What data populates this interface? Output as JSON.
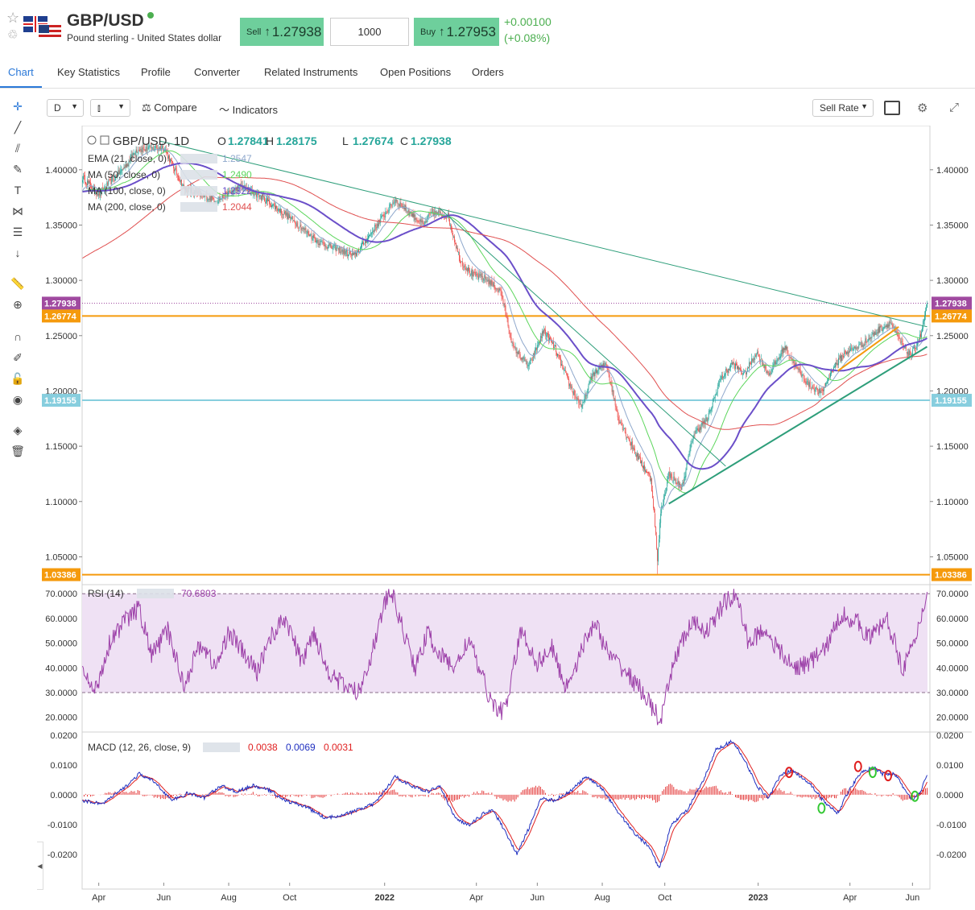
{
  "header": {
    "symbol": "GBP/USD",
    "description": "Pound sterling - United States dollar",
    "sell_label": "Sell",
    "sell_price": "1.27938",
    "quantity": "1000",
    "buy_label": "Buy",
    "buy_price": "1.27953",
    "change": "+0.00100",
    "change_pct": "(+0.08%)",
    "arrow": "↑"
  },
  "tabs": [
    "Chart",
    "Key Statistics",
    "Profile",
    "Converter",
    "Related Instruments",
    "Open Positions",
    "Orders"
  ],
  "toolbar": {
    "interval": "D",
    "compare": "Compare",
    "indicators": "Indicators",
    "rate_select": "Sell Rate"
  },
  "chart_data": {
    "type": "candlestick",
    "symbol_interval": "GBP/USD, 1D",
    "ohlc": {
      "O": "1.27841",
      "H": "1.28175",
      "L": "1.27674",
      "C": "1.27938"
    },
    "indicators": [
      {
        "label": "EMA (21, close, 0)",
        "value": "1.2547",
        "color": "#8fa8cc"
      },
      {
        "label": "MA (50, close, 0)",
        "value": "1.2490",
        "color": "#5cd65c"
      },
      {
        "label": "MA (100, close, 0)",
        "value": "1.2322",
        "color": "#6b4fc9"
      },
      {
        "label": "MA (200, close, 0)",
        "value": "1.2044",
        "color": "#e05050"
      }
    ],
    "price_axis": [
      "1.40000",
      "1.35000",
      "1.30000",
      "1.25000",
      "1.20000",
      "1.15000",
      "1.10000",
      "1.05000"
    ],
    "ylim": [
      1.027,
      1.437
    ],
    "horizontal_lines": [
      {
        "value": 1.27938,
        "label": "1.27938",
        "color": "#a04aa0",
        "style": "dotted"
      },
      {
        "value": 1.26774,
        "label": "1.26774",
        "color": "#f59a0c"
      },
      {
        "value": 1.19155,
        "label": "1.19155",
        "color": "#87cede"
      },
      {
        "value": 1.03386,
        "label": "1.03386",
        "color": "#f59a0c"
      }
    ],
    "time_axis": [
      "Apr",
      "Jun",
      "Aug",
      "Oct",
      "2022",
      "Apr",
      "Jun",
      "Aug",
      "Oct",
      "2023",
      "Apr",
      "Jun"
    ],
    "close_anchors": [
      [
        0,
        1.393
      ],
      [
        20,
        1.378
      ],
      [
        55,
        1.405
      ],
      [
        65,
        1.418
      ],
      [
        100,
        1.42
      ],
      [
        125,
        1.383
      ],
      [
        165,
        1.372
      ],
      [
        195,
        1.385
      ],
      [
        215,
        1.378
      ],
      [
        255,
        1.357
      ],
      [
        290,
        1.335
      ],
      [
        335,
        1.322
      ],
      [
        385,
        1.373
      ],
      [
        420,
        1.35
      ],
      [
        430,
        1.362
      ],
      [
        450,
        1.358
      ],
      [
        465,
        1.318
      ],
      [
        480,
        1.305
      ],
      [
        495,
        1.302
      ],
      [
        515,
        1.29
      ],
      [
        530,
        1.24
      ],
      [
        550,
        1.222
      ],
      [
        568,
        1.255
      ],
      [
        582,
        1.238
      ],
      [
        600,
        1.205
      ],
      [
        615,
        1.185
      ],
      [
        628,
        1.215
      ],
      [
        645,
        1.225
      ],
      [
        660,
        1.175
      ],
      [
        680,
        1.145
      ],
      [
        700,
        1.12
      ],
      [
        705,
        1.08
      ],
      [
        708,
        1.045
      ],
      [
        712,
        1.09
      ],
      [
        722,
        1.125
      ],
      [
        738,
        1.112
      ],
      [
        752,
        1.16
      ],
      [
        770,
        1.175
      ],
      [
        785,
        1.21
      ],
      [
        800,
        1.225
      ],
      [
        815,
        1.215
      ],
      [
        830,
        1.235
      ],
      [
        845,
        1.215
      ],
      [
        865,
        1.24
      ],
      [
        880,
        1.22
      ],
      [
        895,
        1.205
      ],
      [
        910,
        1.198
      ],
      [
        925,
        1.222
      ],
      [
        940,
        1.235
      ],
      [
        960,
        1.242
      ],
      [
        980,
        1.255
      ],
      [
        995,
        1.262
      ],
      [
        1010,
        1.24
      ],
      [
        1020,
        1.232
      ],
      [
        1032,
        1.25
      ],
      [
        1040,
        1.279
      ]
    ],
    "rsi": {
      "label": "RSI (14)",
      "value": "70.6803",
      "axis": [
        "70.0000",
        "60.0000",
        "50.0000",
        "40.0000",
        "30.0000",
        "20.0000"
      ],
      "ylim": [
        15,
        73
      ],
      "band": [
        30,
        70
      ],
      "anchors": [
        [
          0,
          38
        ],
        [
          15,
          30
        ],
        [
          35,
          52
        ],
        [
          55,
          60
        ],
        [
          70,
          64
        ],
        [
          85,
          45
        ],
        [
          105,
          55
        ],
        [
          125,
          33
        ],
        [
          145,
          50
        ],
        [
          165,
          40
        ],
        [
          180,
          55
        ],
        [
          200,
          45
        ],
        [
          215,
          38
        ],
        [
          230,
          52
        ],
        [
          250,
          60
        ],
        [
          270,
          42
        ],
        [
          285,
          55
        ],
        [
          300,
          40
        ],
        [
          320,
          33
        ],
        [
          340,
          30
        ],
        [
          358,
          48
        ],
        [
          372,
          66
        ],
        [
          380,
          71
        ],
        [
          395,
          55
        ],
        [
          410,
          40
        ],
        [
          425,
          54
        ],
        [
          440,
          45
        ],
        [
          460,
          40
        ],
        [
          475,
          52
        ],
        [
          490,
          38
        ],
        [
          505,
          25
        ],
        [
          520,
          22
        ],
        [
          540,
          55
        ],
        [
          560,
          42
        ],
        [
          578,
          48
        ],
        [
          595,
          32
        ],
        [
          612,
          45
        ],
        [
          630,
          59
        ],
        [
          648,
          45
        ],
        [
          665,
          40
        ],
        [
          690,
          30
        ],
        [
          705,
          22
        ],
        [
          712,
          18
        ],
        [
          730,
          45
        ],
        [
          750,
          58
        ],
        [
          770,
          55
        ],
        [
          790,
          66
        ],
        [
          805,
          70
        ],
        [
          820,
          50
        ],
        [
          840,
          56
        ],
        [
          855,
          48
        ],
        [
          875,
          40
        ],
        [
          895,
          42
        ],
        [
          915,
          48
        ],
        [
          935,
          62
        ],
        [
          955,
          58
        ],
        [
          970,
          52
        ],
        [
          990,
          60
        ],
        [
          1010,
          40
        ],
        [
          1025,
          50
        ],
        [
          1040,
          71
        ]
      ]
    },
    "macd": {
      "label": "MACD (12, 26, close, 9)",
      "values": [
        {
          "value": "0.0038",
          "color": "#e02020"
        },
        {
          "value": "0.0069",
          "color": "#2030c0"
        },
        {
          "value": "0.0031",
          "color": "#e02020"
        }
      ],
      "axis": [
        "0.0200",
        "0.0100",
        "0.0000",
        "-0.0100",
        "-0.0200"
      ],
      "ylim": [
        -0.0295,
        0.0205
      ],
      "anchors": [
        [
          0,
          -0.002
        ],
        [
          25,
          -0.003
        ],
        [
          50,
          0.002
        ],
        [
          70,
          0.007
        ],
        [
          90,
          0.004
        ],
        [
          110,
          -0.002
        ],
        [
          130,
          0.0005
        ],
        [
          150,
          -0.001
        ],
        [
          170,
          0.003
        ],
        [
          190,
          0.001
        ],
        [
          210,
          0.003
        ],
        [
          230,
          0.0015
        ],
        [
          250,
          -0.002
        ],
        [
          275,
          -0.004
        ],
        [
          300,
          -0.008
        ],
        [
          330,
          -0.006
        ],
        [
          360,
          -0.003
        ],
        [
          385,
          0.006
        ],
        [
          405,
          0.003
        ],
        [
          425,
          0.001
        ],
        [
          440,
          0.003
        ],
        [
          455,
          -0.006
        ],
        [
          465,
          -0.009
        ],
        [
          478,
          -0.01
        ],
        [
          495,
          -0.006
        ],
        [
          505,
          -0.005
        ],
        [
          520,
          -0.012
        ],
        [
          535,
          -0.02
        ],
        [
          550,
          -0.011
        ],
        [
          565,
          -0.001
        ],
        [
          580,
          -0.002
        ],
        [
          600,
          0.001
        ],
        [
          620,
          0.006
        ],
        [
          640,
          0.002
        ],
        [
          660,
          -0.006
        ],
        [
          680,
          -0.013
        ],
        [
          700,
          -0.018
        ],
        [
          710,
          -0.025
        ],
        [
          725,
          -0.01
        ],
        [
          745,
          -0.005
        ],
        [
          765,
          0.005
        ],
        [
          780,
          0.015
        ],
        [
          800,
          0.018
        ],
        [
          815,
          0.012
        ],
        [
          830,
          0.003
        ],
        [
          845,
          -0.001
        ],
        [
          860,
          0.007
        ],
        [
          875,
          0.008
        ],
        [
          895,
          0.004
        ],
        [
          915,
          -0.003
        ],
        [
          930,
          -0.006
        ],
        [
          945,
          0.002
        ],
        [
          960,
          0.008
        ],
        [
          975,
          0.009
        ],
        [
          985,
          0.007
        ],
        [
          1000,
          0.007
        ],
        [
          1012,
          0.002
        ],
        [
          1022,
          -0.002
        ],
        [
          1032,
          0.001
        ],
        [
          1040,
          0.0069
        ]
      ]
    }
  }
}
